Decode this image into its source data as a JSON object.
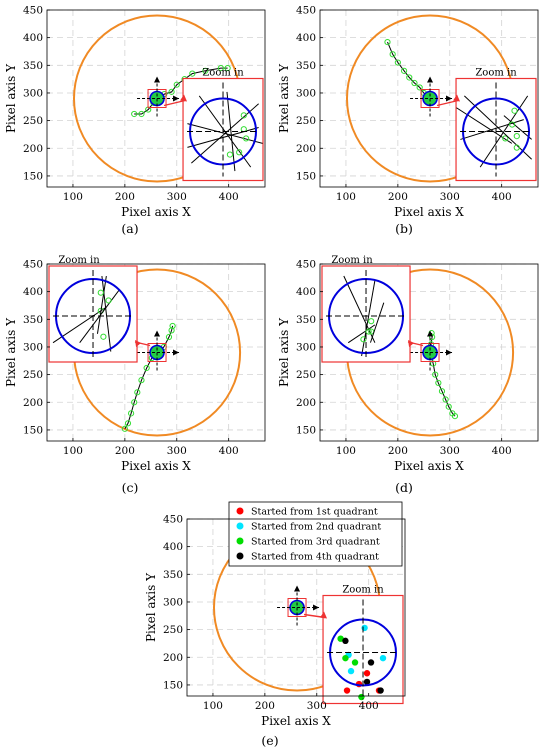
{
  "chart_data": [
    {
      "id": "a",
      "type": "scatter",
      "caption": "(a)",
      "xlabel": "Pixel axis X",
      "ylabel": "Pixel axis Y",
      "xlim": [
        50,
        470
      ],
      "ylim": [
        130,
        450
      ],
      "xticks": [
        "100",
        "200",
        "300",
        "400"
      ],
      "yticks": [
        "150",
        "200",
        "250",
        "300",
        "350",
        "400",
        "450"
      ],
      "grid": true,
      "target": {
        "cx": 262,
        "cy": 290
      },
      "large_circle": {
        "cx": 262,
        "cy": 290,
        "r": 160
      },
      "zoom_label": "Zoom in",
      "zoom_placement": "right",
      "trajectory": [
        [
          262,
          290
        ],
        [
          268,
          288
        ],
        [
          276,
          298
        ],
        [
          290,
          302
        ],
        [
          300,
          315
        ],
        [
          315,
          325
        ],
        [
          330,
          335
        ],
        [
          355,
          340
        ],
        [
          385,
          345
        ],
        [
          398,
          345
        ]
      ],
      "trajectory2": [
        [
          262,
          290
        ],
        [
          255,
          282
        ],
        [
          245,
          270
        ],
        [
          232,
          262
        ],
        [
          218,
          262
        ]
      ]
    },
    {
      "id": "b",
      "type": "scatter",
      "caption": "(b)",
      "xlabel": "Pixel axis X",
      "ylabel": "Pixel axis Y",
      "xlim": [
        50,
        470
      ],
      "ylim": [
        130,
        450
      ],
      "xticks": [
        "100",
        "200",
        "300",
        "400"
      ],
      "yticks": [
        "150",
        "200",
        "250",
        "300",
        "350",
        "400",
        "450"
      ],
      "grid": true,
      "target": {
        "cx": 262,
        "cy": 290
      },
      "large_circle": {
        "cx": 262,
        "cy": 290,
        "r": 160
      },
      "zoom_label": "Zoom in",
      "zoom_placement": "right",
      "trajectory": [
        [
          180,
          392
        ],
        [
          190,
          370
        ],
        [
          200,
          355
        ],
        [
          212,
          340
        ],
        [
          222,
          328
        ],
        [
          232,
          318
        ],
        [
          242,
          310
        ],
        [
          250,
          300
        ],
        [
          258,
          292
        ],
        [
          262,
          290
        ]
      ],
      "trajectory2": []
    },
    {
      "id": "c",
      "type": "scatter",
      "caption": "(c)",
      "xlabel": "Pixel axis X",
      "ylabel": "Pixel axis Y",
      "xlim": [
        50,
        470
      ],
      "ylim": [
        130,
        450
      ],
      "xticks": [
        "100",
        "200",
        "300",
        "400"
      ],
      "yticks": [
        "150",
        "200",
        "250",
        "300",
        "350",
        "400",
        "450"
      ],
      "grid": true,
      "target": {
        "cx": 262,
        "cy": 290
      },
      "large_circle": {
        "cx": 262,
        "cy": 290,
        "r": 160
      },
      "zoom_label": "Zoom in",
      "zoom_placement": "left",
      "trajectory": [
        [
          200,
          152
        ],
        [
          206,
          162
        ],
        [
          212,
          180
        ],
        [
          218,
          200
        ],
        [
          224,
          218
        ],
        [
          232,
          240
        ],
        [
          242,
          262
        ],
        [
          252,
          280
        ],
        [
          262,
          290
        ]
      ],
      "trajectory2": [
        [
          262,
          290
        ],
        [
          275,
          300
        ],
        [
          285,
          318
        ],
        [
          290,
          330
        ],
        [
          292,
          338
        ]
      ]
    },
    {
      "id": "d",
      "type": "scatter",
      "caption": "(d)",
      "xlabel": "Pixel axis X",
      "ylabel": "Pixel axis Y",
      "xlim": [
        50,
        470
      ],
      "ylim": [
        130,
        450
      ],
      "xticks": [
        "100",
        "200",
        "300",
        "400"
      ],
      "yticks": [
        "150",
        "200",
        "250",
        "300",
        "350",
        "400",
        "450"
      ],
      "grid": true,
      "target": {
        "cx": 262,
        "cy": 290
      },
      "large_circle": {
        "cx": 262,
        "cy": 290,
        "r": 160
      },
      "zoom_label": "Zoom in",
      "zoom_placement": "left",
      "trajectory": [
        [
          262,
          290
        ],
        [
          268,
          270
        ],
        [
          272,
          250
        ],
        [
          278,
          235
        ],
        [
          285,
          220
        ],
        [
          292,
          205
        ],
        [
          298,
          192
        ],
        [
          305,
          180
        ],
        [
          310,
          175
        ]
      ],
      "trajectory2": [
        [
          262,
          290
        ],
        [
          264,
          305
        ],
        [
          266,
          318
        ],
        [
          265,
          325
        ]
      ]
    },
    {
      "id": "e",
      "type": "scatter",
      "caption": "(e)",
      "xlabel": "Pixel axis X",
      "ylabel": "Pixel axis Y",
      "xlim": [
        50,
        470
      ],
      "ylim": [
        130,
        450
      ],
      "xticks": [
        "100",
        "200",
        "300",
        "400"
      ],
      "yticks": [
        "150",
        "200",
        "250",
        "300",
        "350",
        "400",
        "450"
      ],
      "grid": true,
      "target": {
        "cx": 262,
        "cy": 290
      },
      "large_circle": {
        "cx": 262,
        "cy": 290,
        "r": 160
      },
      "zoom_label": "Zoom in",
      "zoom_placement": "right",
      "legend": [
        {
          "name": "Started from 1st quadrant",
          "color": "#ff0000"
        },
        {
          "name": "Started from 2nd quadrant",
          "color": "#00e5ff"
        },
        {
          "name": "Started from 3rd quadrant",
          "color": "#00dd00"
        },
        {
          "name": "Started from 4th quadrant",
          "color": "#000000"
        }
      ],
      "legend_placement": "top",
      "zoom_points": [
        {
          "q": 1,
          "x": 0.55,
          "y": 0.72
        },
        {
          "q": 1,
          "x": 0.3,
          "y": 0.88
        },
        {
          "q": 1,
          "x": 0.7,
          "y": 0.88
        },
        {
          "q": 1,
          "x": 0.45,
          "y": 0.82
        },
        {
          "q": 2,
          "x": 0.32,
          "y": 0.55
        },
        {
          "q": 2,
          "x": 0.75,
          "y": 0.58
        },
        {
          "q": 2,
          "x": 0.52,
          "y": 0.3
        },
        {
          "q": 2,
          "x": 0.35,
          "y": 0.7
        },
        {
          "q": 3,
          "x": 0.22,
          "y": 0.4
        },
        {
          "q": 3,
          "x": 0.28,
          "y": 0.58
        },
        {
          "q": 3,
          "x": 0.4,
          "y": 0.62
        },
        {
          "q": 3,
          "x": 0.48,
          "y": 0.94
        },
        {
          "q": 4,
          "x": 0.28,
          "y": 0.42
        },
        {
          "q": 4,
          "x": 0.55,
          "y": 0.8
        },
        {
          "q": 4,
          "x": 0.6,
          "y": 0.62
        },
        {
          "q": 4,
          "x": 0.72,
          "y": 0.88
        }
      ]
    }
  ]
}
